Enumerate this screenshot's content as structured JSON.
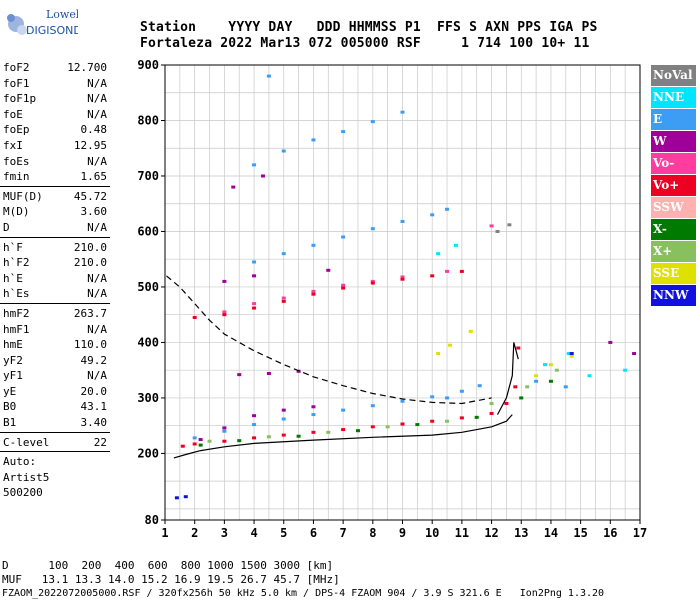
{
  "logo": {
    "brand_top": "Lowell",
    "brand_bottom": "DIGISONDE"
  },
  "header": {
    "line1": "Station    YYYY DAY   DDD HHMMSS P1  FFS S AXN PPS IGA PS",
    "line2": "Fortaleza 2022 Mar13 072 005000 RSF     1 714 100 10+ 11"
  },
  "params": {
    "group1": [
      {
        "name": "foF2",
        "value": "12.700"
      },
      {
        "name": "foF1",
        "value": "N/A"
      },
      {
        "name": "foF1p",
        "value": "N/A"
      },
      {
        "name": "foE",
        "value": "N/A"
      },
      {
        "name": "foEp",
        "value": "0.48"
      },
      {
        "name": "fxI",
        "value": "12.95"
      },
      {
        "name": "foEs",
        "value": "N/A"
      },
      {
        "name": "fmin",
        "value": "1.65"
      }
    ],
    "group2": [
      {
        "name": "MUF(D)",
        "value": "45.72"
      },
      {
        "name": "M(D)",
        "value": "3.60"
      },
      {
        "name": "D",
        "value": "N/A"
      }
    ],
    "group3": [
      {
        "name": "h`F",
        "value": "210.0"
      },
      {
        "name": "h`F2",
        "value": "210.0"
      },
      {
        "name": "h`E",
        "value": "N/A"
      },
      {
        "name": "h`Es",
        "value": "N/A"
      }
    ],
    "group4": [
      {
        "name": "hmF2",
        "value": "263.7"
      },
      {
        "name": "hmF1",
        "value": "N/A"
      },
      {
        "name": "hmE",
        "value": "110.0"
      },
      {
        "name": "yF2",
        "value": "49.2"
      },
      {
        "name": "yF1",
        "value": "N/A"
      },
      {
        "name": "yE",
        "value": "20.0"
      },
      {
        "name": "B0",
        "value": "43.1"
      },
      {
        "name": "B1",
        "value": "3.40"
      }
    ],
    "group5": [
      {
        "name": "C-level",
        "value": "22"
      }
    ],
    "autoscale": [
      "Auto:",
      "Artist5",
      "500200"
    ]
  },
  "legend": [
    {
      "label": "NoVal",
      "bg": "#808080",
      "fg": "#ffffff"
    },
    {
      "label": "NNE",
      "bg": "#00e5ff",
      "fg": "#ffffff"
    },
    {
      "label": "E",
      "bg": "#3d9df5",
      "fg": "#ffffff"
    },
    {
      "label": "W",
      "bg": "#a0009a",
      "fg": "#ffffff"
    },
    {
      "label": "Vo-",
      "bg": "#ff3ca0",
      "fg": "#ffffff"
    },
    {
      "label": "Vo+",
      "bg": "#ee0022",
      "fg": "#ffffff"
    },
    {
      "label": "SSW",
      "bg": "#ffb0b0",
      "fg": "#ffffff"
    },
    {
      "label": "X-",
      "bg": "#007a00",
      "fg": "#ffffff"
    },
    {
      "label": "X+",
      "bg": "#88c060",
      "fg": "#ffffff"
    },
    {
      "label": "SSE",
      "bg": "#e0e000",
      "fg": "#ffffff"
    },
    {
      "label": "NNW",
      "bg": "#1010e0",
      "fg": "#ffffff"
    }
  ],
  "footer": {
    "line1": "D      100  200  400  600  800 1000 1500 3000 [km]",
    "line2": "MUF   13.1 13.3 14.0 15.2 16.9 19.5 26.7 45.7 [MHz]",
    "line3": "FZAOM_2022072005000.RSF / 320fx256h 50 kHz 5.0 km / DPS-4 FZAOM 904 / 3.9 S 321.6 E   Ion2Png 1.3.20"
  },
  "chart_data": {
    "type": "scatter",
    "title": "",
    "xlabel": "",
    "ylabel": "",
    "xlim": [
      1,
      17
    ],
    "ylim": [
      80,
      900
    ],
    "xticks": [
      1,
      2,
      3,
      4,
      5,
      6,
      7,
      8,
      9,
      10,
      11,
      12,
      13,
      14,
      15,
      16,
      17
    ],
    "yticks": [
      80,
      200,
      300,
      400,
      500,
      600,
      700,
      800,
      900
    ],
    "grid": true,
    "series": [
      {
        "name": "E",
        "color": "#3d9df5",
        "points": [
          [
            2.0,
            228
          ],
          [
            3.0,
            240
          ],
          [
            4.0,
            252
          ],
          [
            5.0,
            262
          ],
          [
            6.0,
            270
          ],
          [
            7.0,
            278
          ],
          [
            8.0,
            286
          ],
          [
            9.0,
            294
          ],
          [
            10.0,
            302
          ],
          [
            11.0,
            312
          ],
          [
            11.6,
            322
          ],
          [
            4,
            545
          ],
          [
            5,
            560
          ],
          [
            6,
            575
          ],
          [
            7,
            590
          ],
          [
            8,
            605
          ],
          [
            9,
            618
          ],
          [
            10,
            630
          ],
          [
            10.5,
            640
          ],
          [
            4,
            720
          ],
          [
            5,
            745
          ],
          [
            6,
            765
          ],
          [
            7,
            780
          ],
          [
            8,
            798
          ],
          [
            9,
            815
          ],
          [
            4.5,
            880
          ],
          [
            10.5,
            300
          ],
          [
            13.5,
            330
          ],
          [
            14.5,
            320
          ]
        ]
      },
      {
        "name": "NNE",
        "color": "#00e5ff",
        "points": [
          [
            10.2,
            560
          ],
          [
            10.8,
            575
          ],
          [
            13.8,
            360
          ],
          [
            14.6,
            380
          ],
          [
            15.3,
            340
          ],
          [
            16.5,
            350
          ]
        ]
      },
      {
        "name": "W",
        "color": "#a0009a",
        "points": [
          [
            2.2,
            225
          ],
          [
            3.0,
            246
          ],
          [
            4.0,
            268
          ],
          [
            5.0,
            278
          ],
          [
            6.0,
            284
          ],
          [
            3.5,
            342
          ],
          [
            4.5,
            344
          ],
          [
            5.5,
            348
          ],
          [
            3,
            510
          ],
          [
            4,
            520
          ],
          [
            6.5,
            530
          ],
          [
            16.0,
            400
          ],
          [
            16.8,
            380
          ],
          [
            3.3,
            680
          ],
          [
            4.3,
            700
          ]
        ]
      },
      {
        "name": "Vo-",
        "color": "#ff3ca0",
        "points": [
          [
            3.0,
            455
          ],
          [
            4.0,
            470
          ],
          [
            5.0,
            480
          ],
          [
            6.0,
            492
          ],
          [
            7.0,
            503
          ],
          [
            8.0,
            510
          ],
          [
            9.0,
            518
          ],
          [
            10.5,
            528
          ],
          [
            12.0,
            610
          ]
        ]
      },
      {
        "name": "Vo+",
        "color": "#ee0022",
        "points": [
          [
            1.6,
            213
          ],
          [
            2.0,
            217
          ],
          [
            3.0,
            222
          ],
          [
            4.0,
            228
          ],
          [
            5.0,
            233
          ],
          [
            6.0,
            238
          ],
          [
            7.0,
            243
          ],
          [
            8.0,
            248
          ],
          [
            9.0,
            253
          ],
          [
            10.0,
            258
          ],
          [
            11.0,
            264
          ],
          [
            12.0,
            272
          ],
          [
            12.5,
            290
          ],
          [
            12.8,
            320
          ],
          [
            12.9,
            390
          ],
          [
            2.0,
            445
          ],
          [
            3.0,
            450
          ],
          [
            4.0,
            462
          ],
          [
            5.0,
            474
          ],
          [
            6.0,
            487
          ],
          [
            7.0,
            498
          ],
          [
            8.0,
            507
          ],
          [
            9.0,
            514
          ],
          [
            10.0,
            520
          ],
          [
            11.0,
            528
          ]
        ]
      },
      {
        "name": "X-",
        "color": "#007a00",
        "points": [
          [
            2.2,
            215
          ],
          [
            3.5,
            223
          ],
          [
            5.5,
            231
          ],
          [
            7.5,
            241
          ],
          [
            9.5,
            252
          ],
          [
            11.5,
            265
          ],
          [
            13.0,
            300
          ],
          [
            14.0,
            330
          ]
        ]
      },
      {
        "name": "X+",
        "color": "#88c060",
        "points": [
          [
            2.5,
            222
          ],
          [
            4.5,
            230
          ],
          [
            6.5,
            238
          ],
          [
            8.5,
            248
          ],
          [
            10.5,
            258
          ],
          [
            12.0,
            290
          ],
          [
            13.2,
            320
          ],
          [
            14.2,
            350
          ]
        ]
      },
      {
        "name": "SSE",
        "color": "#e0e000",
        "points": [
          [
            10.2,
            380
          ],
          [
            10.6,
            395
          ],
          [
            11.3,
            420
          ],
          [
            13.5,
            340
          ],
          [
            14.0,
            360
          ],
          [
            14.7,
            375
          ]
        ]
      },
      {
        "name": "NNW",
        "color": "#1010e0",
        "points": [
          [
            1.4,
            120
          ],
          [
            1.7,
            122
          ],
          [
            14.7,
            380
          ]
        ]
      },
      {
        "name": "NoVal",
        "color": "#808080",
        "points": [
          [
            12.2,
            600
          ],
          [
            12.6,
            612
          ]
        ]
      }
    ],
    "curves": [
      {
        "name": "profile",
        "style": "solid",
        "points": [
          [
            1.3,
            192
          ],
          [
            1.7,
            198
          ],
          [
            2.2,
            205
          ],
          [
            3,
            212
          ],
          [
            4,
            218
          ],
          [
            6,
            224
          ],
          [
            8,
            229
          ],
          [
            10,
            233
          ],
          [
            11,
            238
          ],
          [
            12,
            248
          ],
          [
            12.5,
            258
          ],
          [
            12.7,
            270
          ]
        ]
      },
      {
        "name": "profile-upper",
        "style": "solid",
        "points": [
          [
            12.2,
            270
          ],
          [
            12.5,
            300
          ],
          [
            12.7,
            340
          ],
          [
            12.75,
            400
          ],
          [
            12.9,
            370
          ]
        ]
      },
      {
        "name": "dashed-left",
        "style": "dashed",
        "points": [
          [
            1.05,
            520
          ],
          [
            1.5,
            500
          ],
          [
            2.0,
            470
          ],
          [
            2.5,
            440
          ],
          [
            3.0,
            415
          ],
          [
            4.0,
            385
          ],
          [
            5.0,
            360
          ],
          [
            6.0,
            338
          ],
          [
            7.0,
            322
          ],
          [
            8.0,
            308
          ],
          [
            9.0,
            298
          ],
          [
            10.0,
            292
          ],
          [
            11.0,
            290
          ],
          [
            12.0,
            300
          ]
        ]
      }
    ]
  }
}
